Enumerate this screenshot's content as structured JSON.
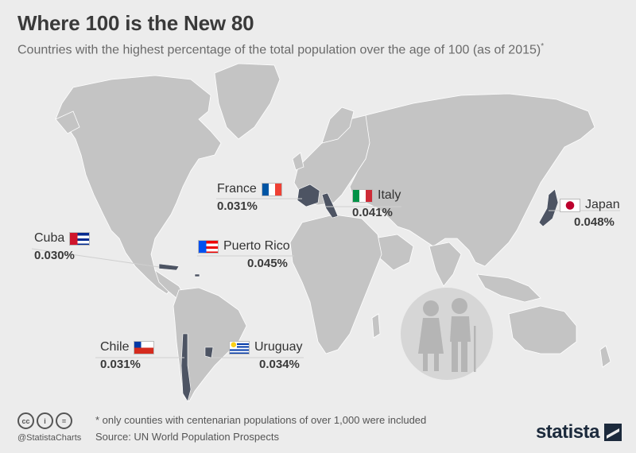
{
  "title": "Where 100 is the New 80",
  "subtitle": "Countries with the highest percentage of the total population over the age of 100 (as of 2015)",
  "subtitle_mark": "*",
  "colors": {
    "background": "#ececec",
    "land": "#c4c4c4",
    "highlight": "#4d5463",
    "border": "#ffffff",
    "text": "#333333"
  },
  "countries": [
    {
      "id": "france",
      "name": "France",
      "value": "0.031%",
      "flag": "france-flag"
    },
    {
      "id": "italy",
      "name": "Italy",
      "value": "0.041%",
      "flag": "italy-flag"
    },
    {
      "id": "japan",
      "name": "Japan",
      "value": "0.048%",
      "flag": "japan-flag"
    },
    {
      "id": "cuba",
      "name": "Cuba",
      "value": "0.030%",
      "flag": "cuba-flag"
    },
    {
      "id": "puerto_rico",
      "name": "Puerto Rico",
      "value": "0.045%",
      "flag": "puerto-rico-flag"
    },
    {
      "id": "chile",
      "name": "Chile",
      "value": "0.031%",
      "flag": "chile-flag"
    },
    {
      "id": "uruguay",
      "name": "Uruguay",
      "value": "0.034%",
      "flag": "uruguay-flag"
    }
  ],
  "illustration": "elderly-couple-icon",
  "footer": {
    "note": "* only counties with centenarian populations of over 1,000 were included",
    "source": "Source: UN World Population Prospects",
    "handle": "@StatistaCharts",
    "license_icons": [
      "cc-icon",
      "by-icon",
      "nd-icon"
    ],
    "license_labels": [
      "cc",
      "i",
      "="
    ],
    "brand": "statista"
  }
}
